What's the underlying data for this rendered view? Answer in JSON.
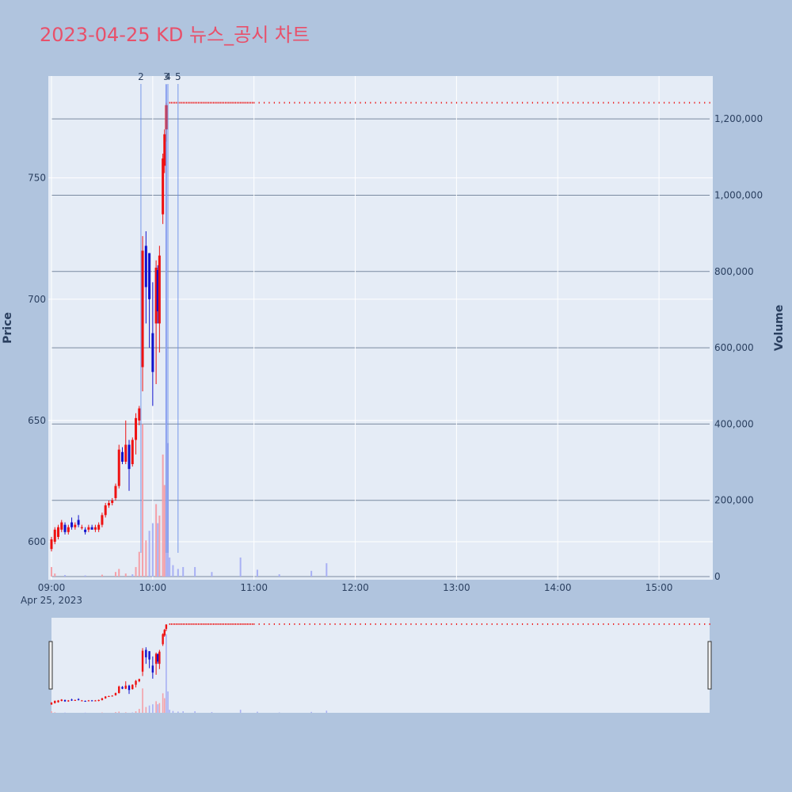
{
  "title": "2023-04-25 KD 뉴스_공시 차트",
  "chart_data": {
    "type": "candlestick",
    "title": "2023-04-25 KD 뉴스_공시 차트",
    "ylabel": "Price",
    "y2label": "Volume",
    "date_label": "Apr 25, 2023",
    "x_ticks": [
      "09:00",
      "10:00",
      "11:00",
      "12:00",
      "13:00",
      "14:00",
      "15:00"
    ],
    "y_ticks": [
      "600",
      "650",
      "700",
      "750"
    ],
    "y2_ticks": [
      "0",
      "200,000",
      "400,000",
      "600,000",
      "800,000",
      "1,000,000",
      "1,200,000"
    ],
    "ylim": [
      585,
      792
    ],
    "y2lim": [
      0,
      1300000
    ],
    "xlim_minutes": [
      0,
      390
    ],
    "up_color": "#ee1111",
    "down_color": "#1111cc",
    "annotations": [
      {
        "label": "2",
        "minute": 53
      },
      {
        "label": "3",
        "minute": 68
      },
      {
        "label": "4",
        "minute": 69
      },
      {
        "label": "5",
        "minute": 75
      }
    ],
    "candles": [
      {
        "t": 0,
        "o": 597,
        "h": 602,
        "l": 596,
        "c": 601
      },
      {
        "t": 2,
        "o": 600,
        "h": 606,
        "l": 599,
        "c": 605
      },
      {
        "t": 4,
        "o": 602,
        "h": 607,
        "l": 601,
        "c": 606
      },
      {
        "t": 6,
        "o": 605,
        "h": 609,
        "l": 604,
        "c": 608
      },
      {
        "t": 8,
        "o": 607,
        "h": 608,
        "l": 603,
        "c": 604
      },
      {
        "t": 10,
        "o": 604,
        "h": 607,
        "l": 603,
        "c": 606
      },
      {
        "t": 12,
        "o": 608,
        "h": 610,
        "l": 605,
        "c": 606
      },
      {
        "t": 14,
        "o": 606,
        "h": 608,
        "l": 605,
        "c": 607
      },
      {
        "t": 16,
        "o": 609,
        "h": 611,
        "l": 606,
        "c": 607
      },
      {
        "t": 18,
        "o": 606,
        "h": 607,
        "l": 605,
        "c": 606
      },
      {
        "t": 20,
        "o": 605,
        "h": 606,
        "l": 603,
        "c": 604
      },
      {
        "t": 22,
        "o": 605,
        "h": 607,
        "l": 604,
        "c": 606
      },
      {
        "t": 24,
        "o": 606,
        "h": 607,
        "l": 605,
        "c": 605
      },
      {
        "t": 26,
        "o": 605,
        "h": 607,
        "l": 604,
        "c": 606
      },
      {
        "t": 28,
        "o": 605,
        "h": 608,
        "l": 604,
        "c": 607
      },
      {
        "t": 30,
        "o": 607,
        "h": 612,
        "l": 606,
        "c": 611
      },
      {
        "t": 32,
        "o": 611,
        "h": 616,
        "l": 610,
        "c": 615
      },
      {
        "t": 34,
        "o": 615,
        "h": 617,
        "l": 614,
        "c": 616
      },
      {
        "t": 36,
        "o": 616,
        "h": 618,
        "l": 615,
        "c": 617
      },
      {
        "t": 38,
        "o": 618,
        "h": 624,
        "l": 617,
        "c": 623
      },
      {
        "t": 40,
        "o": 623,
        "h": 640,
        "l": 622,
        "c": 638
      },
      {
        "t": 42,
        "o": 637,
        "h": 639,
        "l": 632,
        "c": 633
      },
      {
        "t": 44,
        "o": 633,
        "h": 650,
        "l": 632,
        "c": 640
      },
      {
        "t": 46,
        "o": 640,
        "h": 642,
        "l": 621,
        "c": 630
      },
      {
        "t": 48,
        "o": 632,
        "h": 643,
        "l": 631,
        "c": 642
      },
      {
        "t": 50,
        "o": 642,
        "h": 653,
        "l": 636,
        "c": 651
      },
      {
        "t": 52,
        "o": 650,
        "h": 656,
        "l": 648,
        "c": 655
      },
      {
        "t": 54,
        "o": 672,
        "h": 726,
        "l": 662,
        "c": 720
      },
      {
        "t": 56,
        "o": 722,
        "h": 728,
        "l": 690,
        "c": 705
      },
      {
        "t": 58,
        "o": 719,
        "h": 719,
        "l": 680,
        "c": 700
      },
      {
        "t": 60,
        "o": 686,
        "h": 707,
        "l": 656,
        "c": 670
      },
      {
        "t": 62,
        "o": 690,
        "h": 716,
        "l": 665,
        "c": 713
      },
      {
        "t": 63,
        "o": 712,
        "h": 714,
        "l": 690,
        "c": 695
      },
      {
        "t": 64,
        "o": 690,
        "h": 722,
        "l": 678,
        "c": 718
      },
      {
        "t": 66,
        "o": 735,
        "h": 760,
        "l": 731,
        "c": 758
      },
      {
        "t": 67,
        "o": 755,
        "h": 770,
        "l": 752,
        "c": 768
      },
      {
        "t": 68,
        "o": 770,
        "h": 781,
        "l": 765,
        "c": 780
      }
    ],
    "flat_price": 781,
    "flat_start_minute": 70,
    "volumes": [
      {
        "t": 0,
        "v": 25000,
        "up": true
      },
      {
        "t": 2,
        "v": 8000,
        "up": true
      },
      {
        "t": 8,
        "v": 4000,
        "up": false
      },
      {
        "t": 20,
        "v": 3000,
        "up": false
      },
      {
        "t": 30,
        "v": 5000,
        "up": true
      },
      {
        "t": 38,
        "v": 12000,
        "up": true
      },
      {
        "t": 40,
        "v": 20000,
        "up": true
      },
      {
        "t": 44,
        "v": 8000,
        "up": true
      },
      {
        "t": 48,
        "v": 6000,
        "up": false
      },
      {
        "t": 50,
        "v": 25000,
        "up": true
      },
      {
        "t": 52,
        "v": 65000,
        "up": true
      },
      {
        "t": 54,
        "v": 400000,
        "up": true
      },
      {
        "t": 56,
        "v": 95000,
        "up": true
      },
      {
        "t": 58,
        "v": 120000,
        "up": false
      },
      {
        "t": 60,
        "v": 140000,
        "up": false
      },
      {
        "t": 62,
        "v": 190000,
        "up": true
      },
      {
        "t": 63,
        "v": 140000,
        "up": false
      },
      {
        "t": 64,
        "v": 160000,
        "up": true
      },
      {
        "t": 66,
        "v": 320000,
        "up": true
      },
      {
        "t": 67,
        "v": 240000,
        "up": true
      },
      {
        "t": 68,
        "v": 1290000,
        "up": false
      },
      {
        "t": 69,
        "v": 350000,
        "up": false
      },
      {
        "t": 70,
        "v": 50000,
        "up": false
      },
      {
        "t": 72,
        "v": 30000,
        "up": false
      },
      {
        "t": 75,
        "v": 20000,
        "up": false
      },
      {
        "t": 78,
        "v": 25000,
        "up": false
      },
      {
        "t": 85,
        "v": 25000,
        "up": false
      },
      {
        "t": 95,
        "v": 12000,
        "up": false
      },
      {
        "t": 112,
        "v": 50000,
        "up": false
      },
      {
        "t": 122,
        "v": 18000,
        "up": false
      },
      {
        "t": 135,
        "v": 6000,
        "up": false
      },
      {
        "t": 154,
        "v": 15000,
        "up": false
      },
      {
        "t": 163,
        "v": 35000,
        "up": false
      }
    ]
  }
}
